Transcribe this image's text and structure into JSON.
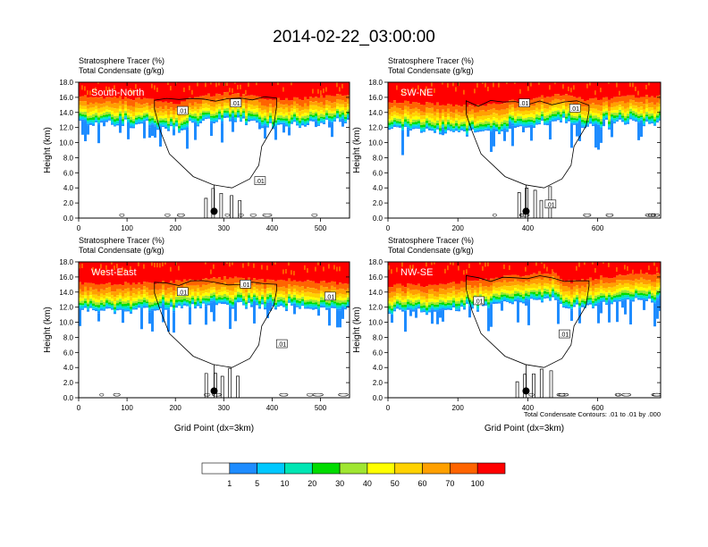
{
  "title": "2014-02-22_03:00:00",
  "field_labels": [
    "Stratosphere Tracer   (%)",
    "Total Condensate   (g/kg)"
  ],
  "contour_note": "Total Condensate Contours: .01 to .01 by .000",
  "colors": {
    "levels": [
      "#ffffff",
      "#1e8cff",
      "#00c8ff",
      "#00e6b4",
      "#00dc00",
      "#a0e632",
      "#ffff00",
      "#ffd200",
      "#ffa000",
      "#ff6400",
      "#ff0000"
    ],
    "marker": "#000000",
    "contour": "#000000"
  },
  "chart_data": [
    {
      "type": "heatmap",
      "panel": "South-North",
      "title": "",
      "xlabel": "",
      "ylabel": "Height (km)",
      "xlim": [
        0,
        560
      ],
      "ylim": [
        0,
        18
      ],
      "x_ticks": [
        "0",
        "100",
        "200",
        "300",
        "400",
        "500"
      ],
      "x_tick_values": [
        0,
        100,
        200,
        300,
        400,
        500
      ],
      "y_ticks": [
        "0.0",
        "2.0",
        "4.0",
        "6.0",
        "8.0",
        "10.0",
        "12.0",
        "14.0",
        "16.0",
        "18.0"
      ],
      "y_tick_values": [
        0,
        2,
        4,
        6,
        8,
        10,
        12,
        14,
        16,
        18
      ],
      "marker_x": 280,
      "contour_labels": [
        {
          "text": ".01",
          "x": 215,
          "y": 14.2
        },
        {
          "text": ".01",
          "x": 325,
          "y": 15.2
        },
        {
          "text": ".01",
          "x": 375,
          "y": 4.9
        }
      ],
      "tracer_base": [
        [
          0,
          15.2
        ],
        [
          80,
          15.0
        ],
        [
          160,
          14.8
        ],
        [
          200,
          14.3
        ],
        [
          230,
          14.8
        ],
        [
          270,
          15.4
        ],
        [
          310,
          15.6
        ],
        [
          350,
          15.3
        ],
        [
          390,
          15.0
        ],
        [
          430,
          14.8
        ],
        [
          470,
          15.0
        ],
        [
          520,
          15.3
        ],
        [
          560,
          15.4
        ]
      ]
    },
    {
      "type": "heatmap",
      "panel": "SW-NE",
      "title": "",
      "xlabel": "",
      "ylabel": "Height (km)",
      "xlim": [
        0,
        780
      ],
      "ylim": [
        0,
        18
      ],
      "x_ticks": [
        "0",
        "200",
        "400",
        "600"
      ],
      "x_tick_values": [
        0,
        200,
        400,
        600
      ],
      "y_ticks": [
        "0.0",
        "2.0",
        "4.0",
        "6.0",
        "8.0",
        "10.0",
        "12.0",
        "14.0",
        "16.0",
        "18.0"
      ],
      "y_tick_values": [
        0,
        2,
        4,
        6,
        8,
        10,
        12,
        14,
        16,
        18
      ],
      "marker_x": 395,
      "contour_labels": [
        {
          "text": ".01",
          "x": 390,
          "y": 15.2
        },
        {
          "text": ".01",
          "x": 535,
          "y": 14.5
        },
        {
          "text": ".01",
          "x": 465,
          "y": 1.8
        }
      ],
      "tracer_base": [
        [
          0,
          14.6
        ],
        [
          120,
          14.2
        ],
        [
          240,
          14.0
        ],
        [
          330,
          14.4
        ],
        [
          420,
          15.0
        ],
        [
          500,
          15.6
        ],
        [
          560,
          14.8
        ],
        [
          640,
          15.0
        ],
        [
          700,
          15.2
        ],
        [
          780,
          15.3
        ]
      ]
    },
    {
      "type": "heatmap",
      "panel": "West-East",
      "title": "",
      "xlabel": "Grid Point (dx=3km)",
      "ylabel": "Height (km)",
      "xlim": [
        0,
        560
      ],
      "ylim": [
        0,
        18
      ],
      "x_ticks": [
        "0",
        "100",
        "200",
        "300",
        "400",
        "500"
      ],
      "x_tick_values": [
        0,
        100,
        200,
        300,
        400,
        500
      ],
      "y_ticks": [
        "0.0",
        "2.0",
        "4.0",
        "6.0",
        "8.0",
        "10.0",
        "12.0",
        "14.0",
        "16.0",
        "18.0"
      ],
      "y_tick_values": [
        0,
        2,
        4,
        6,
        8,
        10,
        12,
        14,
        16,
        18
      ],
      "marker_x": 280,
      "contour_labels": [
        {
          "text": ".01",
          "x": 215,
          "y": 14.0
        },
        {
          "text": ".01",
          "x": 345,
          "y": 15.0
        },
        {
          "text": ".01",
          "x": 420,
          "y": 7.1
        },
        {
          "text": ".01",
          "x": 520,
          "y": 13.4
        }
      ],
      "tracer_base": [
        [
          0,
          14.3
        ],
        [
          90,
          14.2
        ],
        [
          180,
          14.4
        ],
        [
          260,
          14.8
        ],
        [
          320,
          15.0
        ],
        [
          380,
          14.6
        ],
        [
          440,
          14.8
        ],
        [
          500,
          14.4
        ],
        [
          560,
          14.2
        ]
      ]
    },
    {
      "type": "heatmap",
      "panel": "NW-SE",
      "title": "",
      "xlabel": "Grid Point (dx=3km)",
      "ylabel": "Height (km)",
      "xlim": [
        0,
        780
      ],
      "ylim": [
        0,
        18
      ],
      "x_ticks": [
        "0",
        "200",
        "400",
        "600"
      ],
      "x_tick_values": [
        0,
        200,
        400,
        600
      ],
      "y_ticks": [
        "0.0",
        "2.0",
        "4.0",
        "6.0",
        "8.0",
        "10.0",
        "12.0",
        "14.0",
        "16.0",
        "18.0"
      ],
      "y_tick_values": [
        0,
        2,
        4,
        6,
        8,
        10,
        12,
        14,
        16,
        18
      ],
      "marker_x": 395,
      "contour_labels": [
        {
          "text": ".01",
          "x": 260,
          "y": 12.8
        },
        {
          "text": ".01",
          "x": 505,
          "y": 8.4
        }
      ],
      "tracer_base": [
        [
          0,
          14.0
        ],
        [
          120,
          14.0
        ],
        [
          240,
          14.6
        ],
        [
          360,
          15.2
        ],
        [
          460,
          15.8
        ],
        [
          520,
          14.4
        ],
        [
          600,
          15.0
        ],
        [
          700,
          15.4
        ],
        [
          780,
          15.6
        ]
      ]
    }
  ],
  "colorbar": {
    "labels": [
      "1",
      "5",
      "10",
      "20",
      "30",
      "40",
      "50",
      "60",
      "70",
      "100"
    ]
  }
}
